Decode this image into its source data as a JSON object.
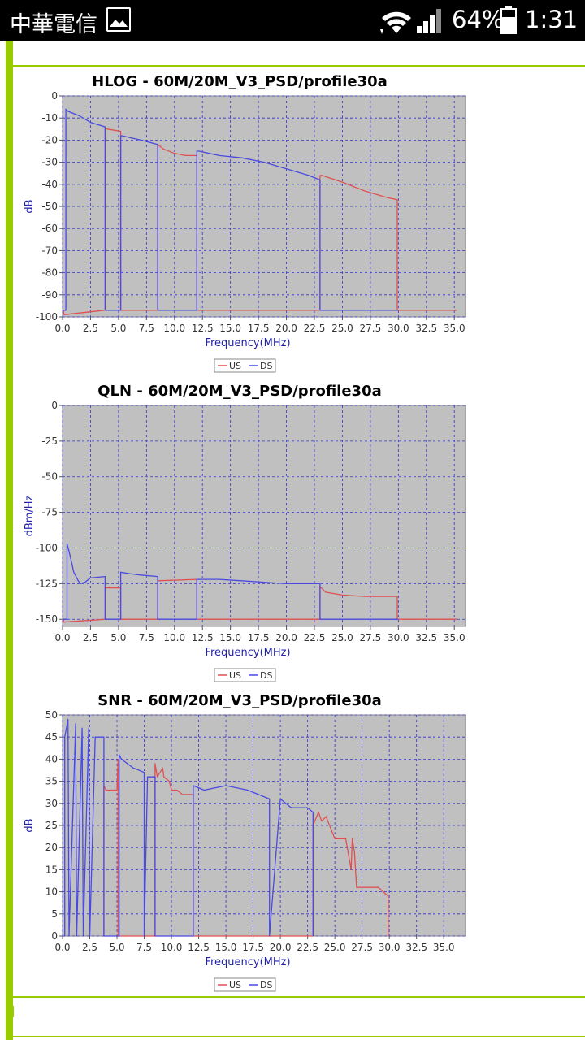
{
  "status_bar": {
    "carrier": "中華電信",
    "battery": "64%",
    "time": "1:31",
    "icons": [
      "image-icon",
      "wifi-icon",
      "signal-icon",
      "battery-icon"
    ]
  },
  "colors": {
    "us": "#e05050",
    "ds": "#4a4ae0",
    "plot_bg": "#c0c0c0",
    "grid": "#3333cc",
    "accent": "#99cc00"
  },
  "chart_data": [
    {
      "type": "line",
      "title": "HLOG - 60M/20M_V3_PSD/profile30a",
      "xlabel": "Frequency(MHz)",
      "ylabel": "dB",
      "xlim": [
        0,
        36
      ],
      "ylim": [
        -100,
        0
      ],
      "xticks": [
        0.0,
        2.5,
        5.0,
        7.5,
        10.0,
        12.5,
        15.0,
        17.5,
        20.0,
        22.5,
        25.0,
        27.5,
        30.0,
        32.5,
        35.0
      ],
      "yticks": [
        0,
        -10,
        -20,
        -30,
        -40,
        -50,
        -60,
        -70,
        -80,
        -90,
        -100
      ],
      "legend": [
        "US",
        "DS"
      ],
      "legend_position": "bottom",
      "series": [
        {
          "name": "US",
          "color": "#e05050",
          "x": [
            0.0,
            0.1,
            0.1,
            3.8,
            3.8,
            3.9,
            4.0,
            5.2,
            5.2,
            8.5,
            8.5,
            9.0,
            10.0,
            11.0,
            12.0,
            12.0,
            23.0,
            23.0,
            23.2,
            25.0,
            27.0,
            29.0,
            29.9,
            29.9,
            35.2
          ],
          "y": [
            -97,
            -97,
            -99,
            -97,
            -15,
            -14.5,
            -15,
            -16,
            -97,
            -97,
            -22,
            -24,
            -26,
            -27,
            -27,
            -97,
            -97,
            -36,
            -36,
            -39,
            -43,
            -46,
            -47,
            -97,
            -97
          ]
        },
        {
          "name": "DS",
          "color": "#4a4ae0",
          "x": [
            0.0,
            0.3,
            0.3,
            0.5,
            1.5,
            2.5,
            3.8,
            3.8,
            5.2,
            5.2,
            5.3,
            7.0,
            8.5,
            8.5,
            12.0,
            12.0,
            12.2,
            14.0,
            16.0,
            18.0,
            20.0,
            22.0,
            23.0,
            23.0,
            30.0
          ],
          "y": [
            -97,
            -97,
            -6,
            -7,
            -9,
            -12,
            -14,
            -97,
            -97,
            -18,
            -18,
            -20,
            -22,
            -97,
            -97,
            -25,
            -25,
            -27,
            -28,
            -30,
            -33,
            -36,
            -38,
            -97,
            -97
          ]
        }
      ]
    },
    {
      "type": "line",
      "title": "QLN - 60M/20M_V3_PSD/profile30a",
      "xlabel": "Frequency(MHz)",
      "ylabel": "dBm/Hz",
      "xlim": [
        0,
        36
      ],
      "ylim": [
        -155,
        0
      ],
      "xticks": [
        0.0,
        2.5,
        5.0,
        7.5,
        10.0,
        12.5,
        15.0,
        17.5,
        20.0,
        22.5,
        25.0,
        27.5,
        30.0,
        32.5,
        35.0
      ],
      "yticks": [
        0,
        -25,
        -50,
        -75,
        -100,
        -125,
        -150
      ],
      "legend": [
        "US",
        "DS"
      ],
      "legend_position": "bottom",
      "series": [
        {
          "name": "US",
          "color": "#e05050",
          "x": [
            0.0,
            0.1,
            0.1,
            3.8,
            3.8,
            5.2,
            5.2,
            8.5,
            8.5,
            12.0,
            12.0,
            23.0,
            23.0,
            23.5,
            25.0,
            27.0,
            29.9,
            29.9,
            35.2
          ],
          "y": [
            -150,
            -150,
            -152,
            -150,
            -128,
            -128,
            -150,
            -150,
            -123,
            -122,
            -150,
            -150,
            -127,
            -131,
            -133,
            -134,
            -134,
            -150,
            -150
          ]
        },
        {
          "name": "DS",
          "color": "#4a4ae0",
          "x": [
            0.0,
            0.4,
            0.4,
            0.6,
            1.0,
            1.4,
            1.6,
            2.0,
            2.5,
            3.8,
            3.8,
            5.2,
            5.2,
            6.0,
            7.0,
            8.5,
            8.5,
            12.0,
            12.0,
            14.0,
            16.0,
            18.0,
            20.0,
            23.0,
            23.0,
            30.0
          ],
          "y": [
            -150,
            -150,
            -97,
            -103,
            -117,
            -123,
            -125,
            -124,
            -121,
            -120,
            -150,
            -150,
            -117,
            -118,
            -119,
            -120,
            -150,
            -150,
            -122,
            -122,
            -123,
            -124,
            -125,
            -125,
            -150,
            -150
          ]
        }
      ]
    },
    {
      "type": "line",
      "title": "SNR - 60M/20M_V3_PSD/profile30a",
      "xlabel": "Frequency(MHz)",
      "ylabel": "dB",
      "xlim": [
        0,
        37
      ],
      "ylim": [
        0,
        50
      ],
      "xticks": [
        0.0,
        2.5,
        5.0,
        7.5,
        10.0,
        12.5,
        15.0,
        17.5,
        20.0,
        22.5,
        25.0,
        27.5,
        30.0,
        32.5,
        35.0
      ],
      "yticks": [
        0,
        5,
        10,
        15,
        20,
        25,
        30,
        35,
        40,
        45,
        50
      ],
      "legend": [
        "US",
        "DS"
      ],
      "legend_position": "bottom",
      "series": [
        {
          "name": "US",
          "color": "#e05050",
          "x": [
            3.8,
            3.8,
            4.0,
            5.0,
            5.1,
            5.1,
            5.2,
            5.2,
            8.5,
            8.5,
            8.7,
            9.2,
            9.3,
            9.8,
            10.0,
            10.5,
            11.0,
            12.0,
            12.0,
            23.0,
            23.0,
            23.5,
            23.8,
            24.2,
            25.0,
            26.0,
            26.5,
            26.6,
            26.8,
            27.0,
            27.2,
            28.0,
            29.0,
            29.9,
            29.9
          ],
          "y": [
            0,
            34,
            33,
            33,
            40,
            0,
            0,
            0,
            0,
            39,
            36,
            38,
            36,
            35,
            33,
            33,
            32,
            32,
            0,
            0,
            25,
            28,
            26,
            27,
            22,
            22,
            15,
            22,
            19,
            11,
            11,
            11,
            11,
            9,
            0
          ]
        },
        {
          "name": "DS",
          "color": "#4a4ae0",
          "x": [
            0.0,
            0.2,
            0.2,
            0.5,
            0.6,
            0.6,
            1.2,
            1.3,
            1.3,
            1.8,
            1.9,
            1.9,
            2.4,
            2.5,
            2.5,
            3.0,
            3.8,
            3.8,
            5.2,
            5.2,
            5.4,
            6.5,
            7.5,
            7.5,
            7.8,
            8.5,
            8.5,
            12.0,
            12.0,
            13.0,
            15.0,
            17.0,
            19.0,
            19.0,
            20.0,
            21.0,
            22.5,
            23.0,
            23.0
          ],
          "y": [
            0,
            0,
            45,
            49,
            0,
            0,
            48,
            0,
            0,
            47,
            0,
            0,
            47,
            0,
            0,
            45,
            45,
            0,
            0,
            41,
            40,
            38,
            37,
            0,
            36,
            36,
            0,
            0,
            34,
            33,
            34,
            33,
            31,
            0,
            31,
            29,
            29,
            28,
            0
          ]
        }
      ]
    }
  ]
}
